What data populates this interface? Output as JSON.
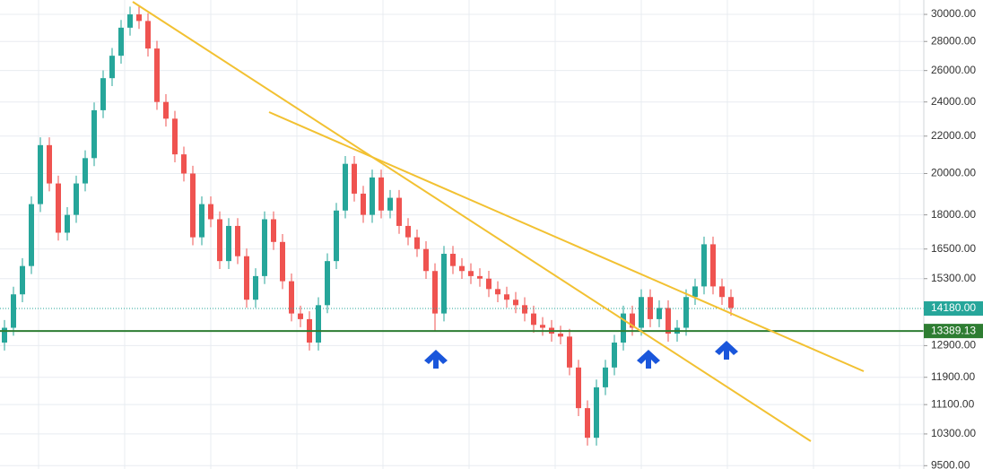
{
  "chart_data": {
    "type": "candlestick",
    "log_scale": true,
    "grid": true,
    "up_color": "#26a69a",
    "down_color": "#ef5350",
    "open": [
      13000,
      13500,
      14700,
      15800,
      18500,
      21500,
      19500,
      17200,
      18000,
      19500,
      20800,
      23500,
      25500,
      27000,
      29000,
      30000,
      29500,
      27500,
      24000,
      23000,
      21000,
      20000,
      17000,
      18500,
      17800,
      16000,
      17500,
      16200,
      14500,
      15400,
      17800,
      16800,
      15200,
      14000,
      13800,
      13000,
      14300,
      16000,
      18200,
      20500,
      19000,
      18000,
      19800,
      18200,
      18800,
      17500,
      17000,
      16500,
      15600,
      14000,
      16300,
      15800,
      15600,
      15400,
      15300,
      14900,
      14700,
      14500,
      14300,
      14000,
      13600,
      13500,
      13300,
      13200,
      12200,
      11000,
      10200,
      11600,
      12200,
      13000,
      14000,
      13500,
      14600,
      13800,
      14200,
      13300,
      13500,
      14600,
      15000,
      16700,
      15000,
      14600
    ],
    "high": [
      13770,
      14990,
      16120,
      18870,
      21930,
      21930,
      19890,
      18360,
      19890,
      21220,
      23970,
      26010,
      27540,
      29580,
      30600,
      30600,
      30090,
      28050,
      24480,
      23460,
      21420,
      20400,
      18870,
      18870,
      18160,
      17850,
      17850,
      16520,
      15710,
      18160,
      18160,
      17140,
      15500,
      14280,
      14080,
      14590,
      16320,
      18560,
      20910,
      20910,
      19380,
      20200,
      20200,
      19180,
      19180,
      17850,
      17340,
      16830,
      15910,
      16630,
      16630,
      16120,
      15910,
      15710,
      15610,
      15200,
      14990,
      14790,
      14590,
      14280,
      13870,
      13770,
      13570,
      13460,
      12440,
      11220,
      11830,
      12440,
      13260,
      14280,
      14280,
      14890,
      14890,
      14480,
      14480,
      13770,
      14890,
      15300,
      17030,
      17030,
      15300,
      14890
    ],
    "low": [
      12740,
      13230,
      14410,
      15480,
      18130,
      19110,
      16860,
      16860,
      17640,
      19110,
      20380,
      23030,
      24990,
      26460,
      28420,
      28910,
      26950,
      23520,
      22540,
      20580,
      19600,
      16660,
      16660,
      17440,
      15680,
      15680,
      15880,
      14210,
      14210,
      15090,
      16460,
      14900,
      13720,
      13520,
      12740,
      12740,
      14010,
      15680,
      17840,
      18620,
      17640,
      17640,
      17840,
      17840,
      17150,
      16660,
      16170,
      15290,
      13390,
      13720,
      15480,
      15290,
      15090,
      14990,
      14600,
      14410,
      14210,
      14010,
      13720,
      13330,
      13230,
      13030,
      12940,
      11960,
      10780,
      10000,
      10000,
      11370,
      11960,
      12740,
      13230,
      13230,
      13520,
      13520,
      13030,
      13030,
      13230,
      14310,
      14700,
      14700,
      14310,
      13920
    ],
    "close": [
      13500,
      14700,
      15800,
      18500,
      21500,
      19500,
      17200,
      18000,
      19500,
      20800,
      23500,
      25500,
      27000,
      29000,
      30000,
      29500,
      27500,
      24000,
      23000,
      21000,
      20000,
      17000,
      18500,
      17800,
      16000,
      17500,
      16200,
      14500,
      15400,
      17800,
      16800,
      15200,
      14000,
      13800,
      13000,
      14300,
      16000,
      18200,
      20500,
      19000,
      18000,
      19800,
      18200,
      18800,
      17500,
      17000,
      16500,
      15600,
      14000,
      16300,
      15800,
      15600,
      15400,
      15300,
      14900,
      14700,
      14500,
      14300,
      14000,
      13600,
      13500,
      13300,
      13200,
      12200,
      11000,
      10200,
      11600,
      12200,
      13000,
      14000,
      13500,
      14600,
      13800,
      14200,
      13300,
      13500,
      14600,
      15000,
      16700,
      15000,
      14600,
      14200
    ],
    "ylim": [
      9420,
      31120
    ],
    "yticks": [
      {
        "value": 30000,
        "label": "30000.00"
      },
      {
        "value": 28000,
        "label": "28000.00"
      },
      {
        "value": 26000,
        "label": "26000.00"
      },
      {
        "value": 24000,
        "label": "24000.00"
      },
      {
        "value": 22000,
        "label": "22000.00"
      },
      {
        "value": 20000,
        "label": "20000.00"
      },
      {
        "value": 18000,
        "label": "18000.00"
      },
      {
        "value": 16500,
        "label": "16500.00"
      },
      {
        "value": 15300,
        "label": "15300.00"
      },
      {
        "value": 12900,
        "label": "12900.00"
      },
      {
        "value": 11900,
        "label": "11900.00"
      },
      {
        "value": 11100,
        "label": "11100.00"
      },
      {
        "value": 10300,
        "label": "10300.00"
      },
      {
        "value": 9500,
        "label": "9500.00"
      }
    ],
    "price_lines": [
      {
        "value": 14180,
        "label": "14180.00",
        "color": "#26a69a",
        "style": "dotted"
      },
      {
        "value": 13389.13,
        "label": "13389.13",
        "color": "#2e7d32",
        "style": "solid"
      }
    ]
  }
}
